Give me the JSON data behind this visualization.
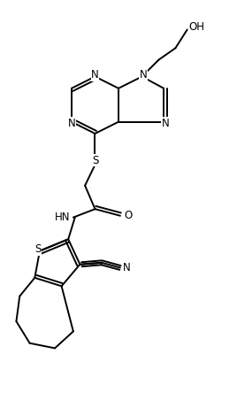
{
  "bg_color": "#ffffff",
  "line_color": "#000000",
  "line_width": 1.4,
  "font_size": 8.5,
  "figsize": [
    2.68,
    4.61
  ],
  "dpi": 100,
  "xlim": [
    0,
    7
  ],
  "ylim": [
    0,
    11.5
  ]
}
